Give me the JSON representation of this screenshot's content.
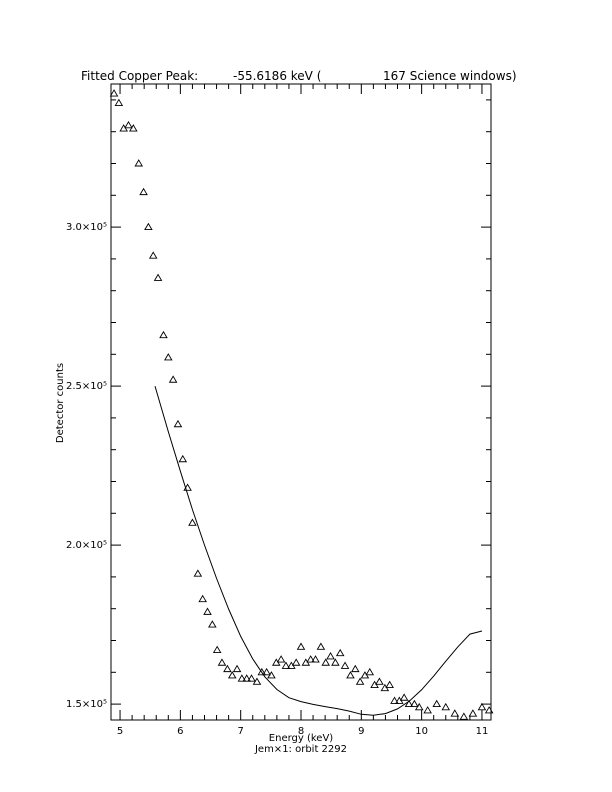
{
  "chart_data": {
    "type": "scatter",
    "title_parts": [
      "Fitted Copper Peak:",
      "-55.6186 keV (",
      "167 Science windows)"
    ],
    "xlabel": "Energy (keV)",
    "ylabel": "Detector counts",
    "subtitle": "Jem×1: orbit 2292",
    "xlim": [
      4.85,
      11.15
    ],
    "ylim": [
      145000,
      345000
    ],
    "x_ticks": [
      {
        "value": 5,
        "label": "5"
      },
      {
        "value": 6,
        "label": "6"
      },
      {
        "value": 7,
        "label": "7"
      },
      {
        "value": 8,
        "label": "8"
      },
      {
        "value": 9,
        "label": "9"
      },
      {
        "value": 10,
        "label": "10"
      },
      {
        "value": 11,
        "label": "11"
      }
    ],
    "y_ticks": [
      {
        "value": 150000,
        "label": "1.5×10⁵"
      },
      {
        "value": 200000,
        "label": "2.0×10⁵"
      },
      {
        "value": 250000,
        "label": "2.5×10⁵"
      },
      {
        "value": 300000,
        "label": "3.0×10⁵"
      }
    ],
    "grid": false,
    "series": [
      {
        "marker": "triangle",
        "x": [
          4.9,
          4.98,
          5.06,
          5.14,
          5.22,
          5.31,
          5.39,
          5.47,
          5.55,
          5.63,
          5.72,
          5.8,
          5.88,
          5.96,
          6.04,
          6.12,
          6.2,
          6.29,
          6.37,
          6.45,
          6.53,
          6.61,
          6.69,
          6.78,
          6.86,
          6.94,
          7.02,
          7.1,
          7.18,
          7.27,
          7.35,
          7.43,
          7.51,
          7.59,
          7.67,
          7.75,
          7.84,
          7.92,
          8.0,
          8.08,
          8.16,
          8.24,
          8.33,
          8.41,
          8.49,
          8.57,
          8.65,
          8.73,
          8.82,
          8.9,
          8.98,
          9.06,
          9.14,
          9.22,
          9.3,
          9.39,
          9.47,
          9.55,
          9.63,
          9.71,
          9.79,
          9.88,
          9.96,
          10.1,
          10.25,
          10.4,
          10.55,
          10.7,
          10.85,
          11.0,
          11.12
        ],
        "y": [
          342000,
          339000,
          331000,
          332000,
          331000,
          320000,
          311000,
          300000,
          291000,
          284000,
          266000,
          259000,
          252000,
          238000,
          227000,
          218000,
          207000,
          191000,
          183000,
          179000,
          175000,
          167000,
          163000,
          161000,
          159000,
          161000,
          158000,
          158000,
          158000,
          157000,
          160000,
          160000,
          159000,
          163000,
          164000,
          162000,
          162000,
          163000,
          168000,
          163000,
          164000,
          164000,
          168000,
          163000,
          165000,
          163000,
          166000,
          162000,
          159000,
          161000,
          157000,
          159000,
          160000,
          156000,
          157000,
          155000,
          156000,
          151000,
          151000,
          152000,
          150000,
          150000,
          149000,
          148000,
          150000,
          149000,
          147000,
          146000,
          147000,
          149000,
          148000
        ]
      },
      {
        "marker": "line",
        "x": [
          5.58,
          5.8,
          6.0,
          6.2,
          6.4,
          6.6,
          6.8,
          7.0,
          7.2,
          7.4,
          7.6,
          7.8,
          8.0,
          8.2,
          8.4,
          8.6,
          8.8,
          9.0,
          9.2,
          9.4,
          9.6,
          9.8,
          10.0,
          10.2,
          10.4,
          10.6,
          10.8,
          11.0
        ],
        "y": [
          250000,
          235700,
          223200,
          211200,
          200000,
          189500,
          179900,
          171300,
          164200,
          158600,
          154600,
          152000,
          150800,
          149900,
          149200,
          148600,
          147800,
          146800,
          146500,
          147000,
          148500,
          151000,
          154500,
          158800,
          163500,
          168000,
          172000,
          173000
        ]
      }
    ]
  }
}
